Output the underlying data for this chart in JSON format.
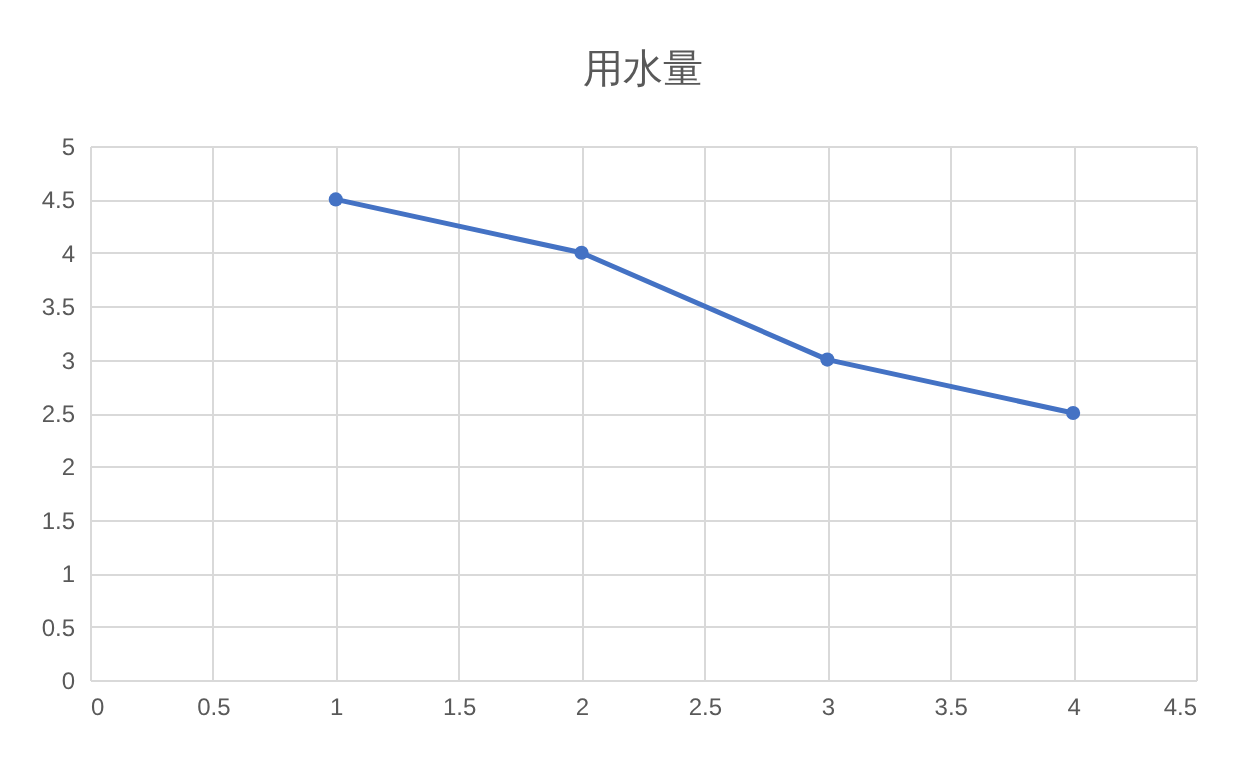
{
  "chart_data": {
    "type": "line",
    "title": "用水量",
    "x": [
      1,
      2,
      3,
      4
    ],
    "series": [
      {
        "color": "#4472c4",
        "values": [
          4.5,
          4,
          3,
          2.5
        ]
      }
    ],
    "xlim": [
      0,
      4.5
    ],
    "xticks": [
      0,
      0.5,
      1,
      1.5,
      2,
      2.5,
      3,
      3.5,
      4,
      4.5
    ],
    "ylim": [
      0,
      5
    ],
    "yticks": [
      0,
      0.5,
      1,
      1.5,
      2,
      2.5,
      3,
      3.5,
      4,
      4.5,
      5
    ],
    "grid": true,
    "marker": "circle",
    "line_style": "solid"
  }
}
